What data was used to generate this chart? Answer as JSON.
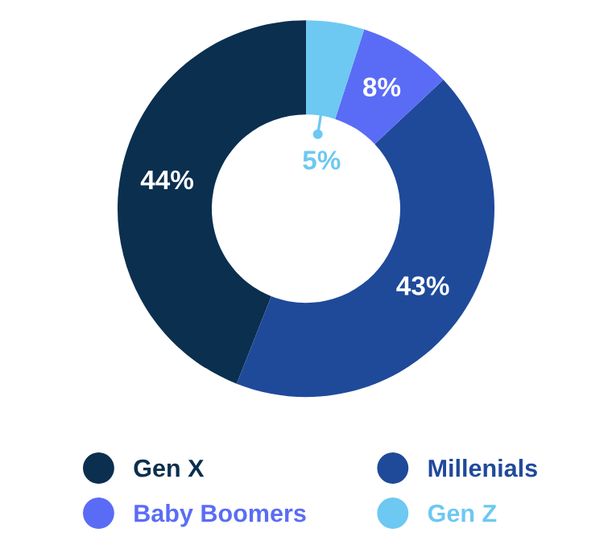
{
  "chart_data": {
    "type": "donut",
    "categories": [
      "Gen X",
      "Millenials",
      "Baby Boomers",
      "Gen Z"
    ],
    "values": [
      44,
      43,
      8,
      5
    ],
    "value_labels": [
      "44%",
      "43%",
      "8%",
      "5%"
    ],
    "colors": [
      "#0b2f4f",
      "#1f4a9a",
      "#5a6cf5",
      "#6dc8f2"
    ],
    "legend": "bottom"
  }
}
